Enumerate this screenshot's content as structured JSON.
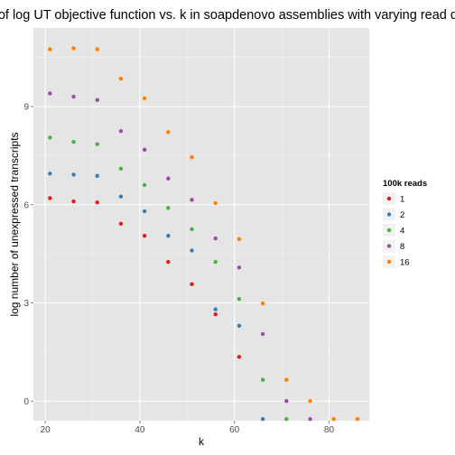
{
  "chart_data": {
    "type": "scatter",
    "title": "Plot of log UT objective function vs. k in soapdenovo assemblies with varying read depth",
    "xlabel": "k",
    "ylabel": "log number of unexpressed transcripts",
    "xlim": [
      17.5,
      88.5
    ],
    "ylim": [
      -0.6,
      11.4
    ],
    "xticks": [
      20,
      40,
      60,
      80
    ],
    "yticks": [
      0,
      3,
      6,
      9
    ],
    "grid": true,
    "legend": {
      "title": "100k reads",
      "position": "right"
    },
    "series": [
      {
        "name": "1",
        "color": "#E41A1C",
        "points": [
          [
            21,
            6.2
          ],
          [
            26,
            6.1
          ],
          [
            31,
            6.07
          ],
          [
            36,
            5.42
          ],
          [
            41,
            5.05
          ],
          [
            46,
            4.25
          ],
          [
            51,
            3.57
          ],
          [
            56,
            2.65
          ],
          [
            61,
            1.35
          ]
        ]
      },
      {
        "name": "2",
        "color": "#377EB8",
        "points": [
          [
            21,
            6.95
          ],
          [
            26,
            6.92
          ],
          [
            31,
            6.88
          ],
          [
            36,
            6.25
          ],
          [
            41,
            5.8
          ],
          [
            46,
            5.05
          ],
          [
            51,
            4.6
          ],
          [
            56,
            2.8
          ],
          [
            61,
            2.3
          ],
          [
            66,
            -0.55
          ]
        ]
      },
      {
        "name": "4",
        "color": "#4DAF4A",
        "points": [
          [
            21,
            8.05
          ],
          [
            26,
            7.92
          ],
          [
            31,
            7.85
          ],
          [
            36,
            7.1
          ],
          [
            41,
            6.6
          ],
          [
            46,
            5.9
          ],
          [
            51,
            5.25
          ],
          [
            56,
            4.25
          ],
          [
            61,
            3.12
          ],
          [
            66,
            0.65
          ],
          [
            71,
            -0.55
          ]
        ]
      },
      {
        "name": "8",
        "color": "#984EA3",
        "points": [
          [
            21,
            9.4
          ],
          [
            26,
            9.3
          ],
          [
            31,
            9.2
          ],
          [
            36,
            8.25
          ],
          [
            41,
            7.68
          ],
          [
            46,
            6.8
          ],
          [
            51,
            6.15
          ],
          [
            56,
            4.97
          ],
          [
            61,
            4.08
          ],
          [
            66,
            2.05
          ],
          [
            71,
            0.0
          ],
          [
            76,
            -0.55
          ]
        ]
      },
      {
        "name": "16",
        "color": "#FF7F00",
        "points": [
          [
            21,
            10.75
          ],
          [
            26,
            10.78
          ],
          [
            31,
            10.75
          ],
          [
            36,
            9.85
          ],
          [
            41,
            9.25
          ],
          [
            46,
            8.22
          ],
          [
            51,
            7.45
          ],
          [
            56,
            6.05
          ],
          [
            61,
            4.95
          ],
          [
            66,
            2.98
          ],
          [
            71,
            0.65
          ],
          [
            76,
            0.0
          ],
          [
            81,
            -0.55
          ],
          [
            86,
            -0.55
          ]
        ]
      }
    ]
  }
}
